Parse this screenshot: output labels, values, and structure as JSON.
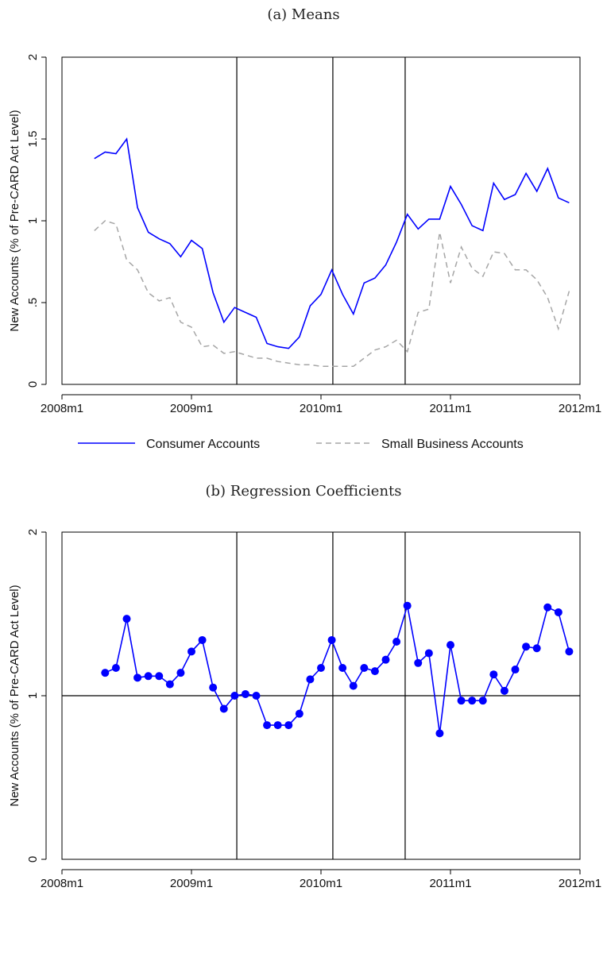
{
  "panels": {
    "a_title": "(a) Means",
    "b_title": "(b) Regression Coefficients"
  },
  "chart_data": [
    {
      "type": "line",
      "title": "(a) Means",
      "ylabel": "New Accounts (% of Pre-CARD Act Level)",
      "xlabel": "",
      "xlim": [
        0,
        48
      ],
      "ylim": [
        0,
        2
      ],
      "x_ticks": [
        {
          "value": 0,
          "label": "2008m1"
        },
        {
          "value": 12,
          "label": "2009m1"
        },
        {
          "value": 24,
          "label": "2010m1"
        },
        {
          "value": 36,
          "label": "2011m1"
        },
        {
          "value": 48,
          "label": "2012m1"
        }
      ],
      "y_ticks": [
        {
          "value": 0,
          "label": "0"
        },
        {
          "value": 0.5,
          "label": ".5"
        },
        {
          "value": 1,
          "label": "1"
        },
        {
          "value": 1.5,
          "label": "1.5"
        },
        {
          "value": 2,
          "label": "2"
        }
      ],
      "vlines": [
        16.2,
        25.1,
        31.8
      ],
      "hlines": [],
      "grid": false,
      "legend_position": "bottom",
      "series": [
        {
          "name": "Consumer Accounts",
          "color": "#0000ff",
          "style": "solid",
          "markers": false,
          "x": [
            3,
            4,
            5,
            6,
            7,
            8,
            9,
            10,
            11,
            12,
            13,
            14,
            15,
            16,
            17,
            18,
            19,
            20,
            21,
            22,
            23,
            24,
            25,
            26,
            27,
            28,
            29,
            30,
            31,
            32,
            33,
            34,
            35,
            36,
            37,
            38,
            39,
            40,
            41,
            42,
            43,
            44,
            45,
            46,
            47
          ],
          "y": [
            1.38,
            1.42,
            1.41,
            1.5,
            1.08,
            0.93,
            0.89,
            0.86,
            0.78,
            0.88,
            0.83,
            0.56,
            0.38,
            0.47,
            0.44,
            0.41,
            0.25,
            0.23,
            0.22,
            0.29,
            0.48,
            0.55,
            0.7,
            0.55,
            0.43,
            0.62,
            0.65,
            0.73,
            0.87,
            1.04,
            0.95,
            1.01,
            1.01,
            1.21,
            1.1,
            0.97,
            0.94,
            1.23,
            1.13,
            1.16,
            1.29,
            1.18,
            1.32,
            1.14,
            1.11
          ]
        },
        {
          "name": "Small Business Accounts",
          "color": "#a6a6a6",
          "style": "dashed",
          "markers": false,
          "x": [
            3,
            4,
            5,
            6,
            7,
            8,
            9,
            10,
            11,
            12,
            13,
            14,
            15,
            16,
            17,
            18,
            19,
            20,
            21,
            22,
            23,
            24,
            25,
            26,
            27,
            28,
            29,
            30,
            31,
            32,
            33,
            34,
            35,
            36,
            37,
            38,
            39,
            40,
            41,
            42,
            43,
            44,
            45,
            46,
            47
          ],
          "y": [
            0.94,
            1.0,
            0.98,
            0.76,
            0.7,
            0.56,
            0.51,
            0.53,
            0.38,
            0.35,
            0.23,
            0.24,
            0.19,
            0.2,
            0.18,
            0.16,
            0.16,
            0.14,
            0.13,
            0.12,
            0.12,
            0.11,
            0.11,
            0.11,
            0.11,
            0.16,
            0.21,
            0.23,
            0.27,
            0.2,
            0.44,
            0.46,
            0.93,
            0.62,
            0.84,
            0.71,
            0.66,
            0.81,
            0.8,
            0.7,
            0.7,
            0.64,
            0.53,
            0.34,
            0.57
          ]
        }
      ]
    },
    {
      "type": "line",
      "title": "(b) Regression Coefficients",
      "ylabel": "New Accounts (% of Pre-CARD Act Level)",
      "xlabel": "",
      "xlim": [
        0,
        48
      ],
      "ylim": [
        0,
        2
      ],
      "x_ticks": [
        {
          "value": 0,
          "label": "2008m1"
        },
        {
          "value": 12,
          "label": "2009m1"
        },
        {
          "value": 24,
          "label": "2010m1"
        },
        {
          "value": 36,
          "label": "2011m1"
        },
        {
          "value": 48,
          "label": "2012m1"
        }
      ],
      "y_ticks": [
        {
          "value": 0,
          "label": "0"
        },
        {
          "value": 1,
          "label": "1"
        },
        {
          "value": 2,
          "label": "2"
        }
      ],
      "vlines": [
        16.2,
        25.1,
        31.8
      ],
      "hlines": [
        1
      ],
      "grid": false,
      "series": [
        {
          "color": "#0000ff",
          "style": "solid",
          "markers": true,
          "x": [
            4,
            5,
            6,
            7,
            8,
            9,
            10,
            11,
            12,
            13,
            14,
            15,
            16,
            17,
            18,
            19,
            20,
            21,
            22,
            23,
            24,
            25,
            26,
            27,
            28,
            29,
            30,
            31,
            32,
            33,
            34,
            35,
            36,
            37,
            38,
            39,
            40,
            41,
            42,
            43,
            44,
            45,
            46,
            47
          ],
          "y": [
            1.14,
            1.17,
            1.47,
            1.11,
            1.12,
            1.12,
            1.07,
            1.14,
            1.27,
            1.34,
            1.05,
            0.92,
            1.0,
            1.01,
            1.0,
            0.82,
            0.82,
            0.82,
            0.89,
            1.1,
            1.17,
            1.34,
            1.17,
            1.06,
            1.17,
            1.15,
            1.22,
            1.33,
            1.55,
            1.2,
            1.26,
            0.77,
            1.31,
            0.97,
            0.97,
            0.97,
            1.13,
            1.03,
            1.16,
            1.3,
            1.29,
            1.54,
            1.51,
            1.27
          ]
        }
      ]
    }
  ]
}
